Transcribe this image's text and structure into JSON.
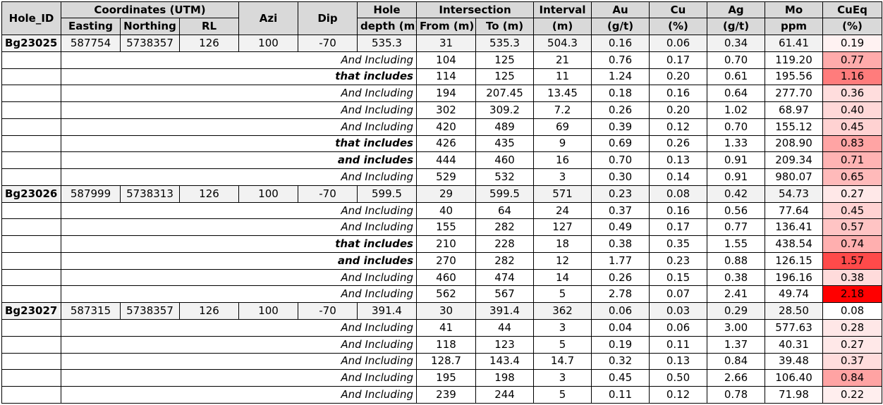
{
  "headers": {
    "hole_id": "Hole_ID",
    "coordinates": "Coordinates (UTM)",
    "easting": "Easting",
    "northing": "Northing",
    "rl": "RL",
    "azi": "Azi",
    "dip": "Dip",
    "hole_depth_1": "Hole",
    "hole_depth_2": "depth (m)",
    "intersection": "Intersection",
    "from": "From (m)",
    "to": "To (m)",
    "interval_1": "Interval",
    "interval_2": "(m)",
    "au_1": "Au",
    "au_2": "(g/t)",
    "cu_1": "Cu",
    "cu_2": "(%)",
    "ag_1": "Ag",
    "ag_2": "(g/t)",
    "mo_1": "Mo",
    "mo_2": "ppm",
    "cueq_1": "CuEq",
    "cueq_2": "(%)"
  },
  "heatmap": {
    "low_color": "#ffffff",
    "high_color": "#ff0000",
    "min": 0.08,
    "max": 2.18
  },
  "rows": [
    {
      "type": "hole",
      "hole_id": "Bg23025",
      "easting": "587754",
      "northing": "5738357",
      "rl": "126",
      "azi": "100",
      "dip": "-70",
      "depth": "535.3",
      "from": "31",
      "to": "535.3",
      "interval": "504.3",
      "au": "0.16",
      "cu": "0.06",
      "ag": "0.34",
      "mo": "61.41",
      "cueq": "0.19"
    },
    {
      "type": "sub",
      "label": "And Including",
      "bold": false,
      "from": "104",
      "to": "125",
      "interval": "21",
      "au": "0.76",
      "cu": "0.17",
      "ag": "0.70",
      "mo": "119.20",
      "cueq": "0.77"
    },
    {
      "type": "sub",
      "label": "that includes",
      "bold": true,
      "from": "114",
      "to": "125",
      "interval": "11",
      "au": "1.24",
      "cu": "0.20",
      "ag": "0.61",
      "mo": "195.56",
      "cueq": "1.16"
    },
    {
      "type": "sub",
      "label": "And Including",
      "bold": false,
      "from": "194",
      "to": "207.45",
      "interval": "13.45",
      "au": "0.18",
      "cu": "0.16",
      "ag": "0.64",
      "mo": "277.70",
      "cueq": "0.36"
    },
    {
      "type": "sub",
      "label": "And Including",
      "bold": false,
      "from": "302",
      "to": "309.2",
      "interval": "7.2",
      "au": "0.26",
      "cu": "0.20",
      "ag": "1.02",
      "mo": "68.97",
      "cueq": "0.40"
    },
    {
      "type": "sub",
      "label": "And Including",
      "bold": false,
      "from": "420",
      "to": "489",
      "interval": "69",
      "au": "0.39",
      "cu": "0.12",
      "ag": "0.70",
      "mo": "155.12",
      "cueq": "0.45"
    },
    {
      "type": "sub",
      "label": "that includes",
      "bold": true,
      "from": "426",
      "to": "435",
      "interval": "9",
      "au": "0.69",
      "cu": "0.26",
      "ag": "1.33",
      "mo": "208.90",
      "cueq": "0.83"
    },
    {
      "type": "sub",
      "label": "and includes",
      "bold": true,
      "from": "444",
      "to": "460",
      "interval": "16",
      "au": "0.70",
      "cu": "0.13",
      "ag": "0.91",
      "mo": "209.34",
      "cueq": "0.71"
    },
    {
      "type": "sub",
      "label": "And Including",
      "bold": false,
      "from": "529",
      "to": "532",
      "interval": "3",
      "au": "0.30",
      "cu": "0.14",
      "ag": "0.91",
      "mo": "980.07",
      "cueq": "0.65"
    },
    {
      "type": "hole",
      "hole_id": "Bg23026",
      "easting": "587999",
      "northing": "5738313",
      "rl": "126",
      "azi": "100",
      "dip": "-70",
      "depth": "599.5",
      "from": "29",
      "to": "599.5",
      "interval": "571",
      "au": "0.23",
      "cu": "0.08",
      "ag": "0.42",
      "mo": "54.73",
      "cueq": "0.27"
    },
    {
      "type": "sub",
      "label": "And Including",
      "bold": false,
      "from": "40",
      "to": "64",
      "interval": "24",
      "au": "0.37",
      "cu": "0.16",
      "ag": "0.56",
      "mo": "77.64",
      "cueq": "0.45"
    },
    {
      "type": "sub",
      "label": "And Including",
      "bold": false,
      "from": "155",
      "to": "282",
      "interval": "127",
      "au": "0.49",
      "cu": "0.17",
      "ag": "0.77",
      "mo": "136.41",
      "cueq": "0.57"
    },
    {
      "type": "sub",
      "label": "that includes",
      "bold": true,
      "from": "210",
      "to": "228",
      "interval": "18",
      "au": "0.38",
      "cu": "0.35",
      "ag": "1.55",
      "mo": "438.54",
      "cueq": "0.74"
    },
    {
      "type": "sub",
      "label": "and includes",
      "bold": true,
      "from": "270",
      "to": "282",
      "interval": "12",
      "au": "1.77",
      "cu": "0.23",
      "ag": "0.88",
      "mo": "126.15",
      "cueq": "1.57"
    },
    {
      "type": "sub",
      "label": "And Including",
      "bold": false,
      "from": "460",
      "to": "474",
      "interval": "14",
      "au": "0.26",
      "cu": "0.15",
      "ag": "0.38",
      "mo": "196.16",
      "cueq": "0.38"
    },
    {
      "type": "sub",
      "label": "And Including",
      "bold": false,
      "from": "562",
      "to": "567",
      "interval": "5",
      "au": "2.78",
      "cu": "0.07",
      "ag": "2.41",
      "mo": "49.74",
      "cueq": "2.18"
    },
    {
      "type": "hole",
      "hole_id": "Bg23027",
      "easting": "587315",
      "northing": "5738357",
      "rl": "126",
      "azi": "100",
      "dip": "-70",
      "depth": "391.4",
      "from": "30",
      "to": "391.4",
      "interval": "362",
      "au": "0.06",
      "cu": "0.03",
      "ag": "0.29",
      "mo": "28.50",
      "cueq": "0.08"
    },
    {
      "type": "sub",
      "label": "And Including",
      "bold": false,
      "from": "41",
      "to": "44",
      "interval": "3",
      "au": "0.04",
      "cu": "0.06",
      "ag": "3.00",
      "mo": "577.63",
      "cueq": "0.28"
    },
    {
      "type": "sub",
      "label": "And Including",
      "bold": false,
      "from": "118",
      "to": "123",
      "interval": "5",
      "au": "0.19",
      "cu": "0.11",
      "ag": "1.37",
      "mo": "40.31",
      "cueq": "0.27"
    },
    {
      "type": "sub",
      "label": "And Including",
      "bold": false,
      "from": "128.7",
      "to": "143.4",
      "interval": "14.7",
      "au": "0.32",
      "cu": "0.13",
      "ag": "0.84",
      "mo": "39.48",
      "cueq": "0.37"
    },
    {
      "type": "sub",
      "label": "And Including",
      "bold": false,
      "from": "195",
      "to": "198",
      "interval": "3",
      "au": "0.45",
      "cu": "0.50",
      "ag": "2.66",
      "mo": "106.40",
      "cueq": "0.84"
    },
    {
      "type": "sub",
      "label": "And Including",
      "bold": false,
      "from": "239",
      "to": "244",
      "interval": "5",
      "au": "0.11",
      "cu": "0.12",
      "ag": "0.78",
      "mo": "71.98",
      "cueq": "0.22"
    }
  ]
}
